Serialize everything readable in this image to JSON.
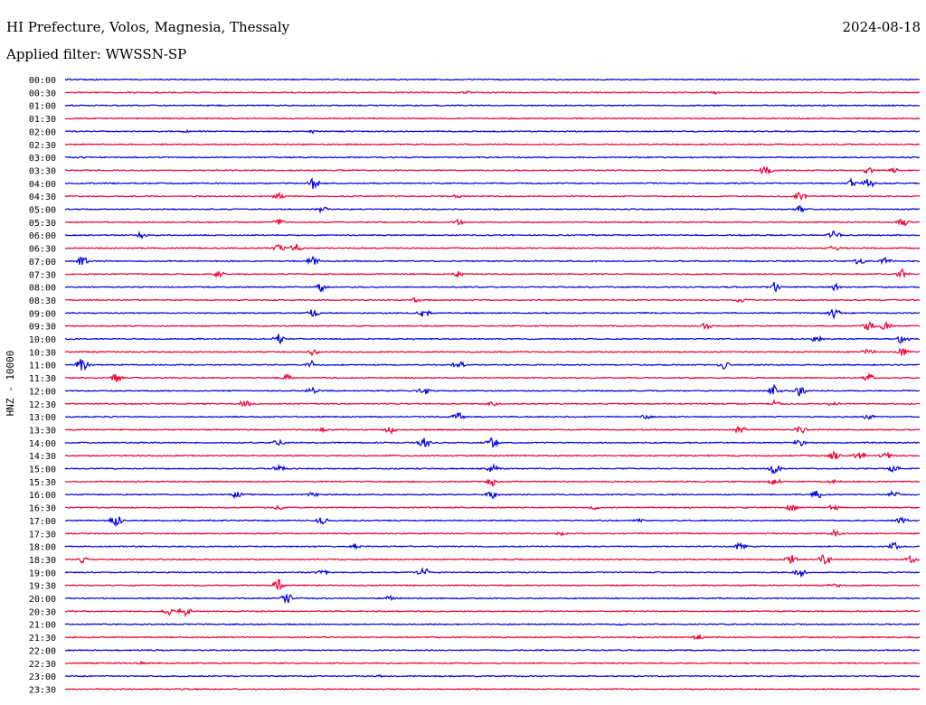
{
  "header": {
    "station": "HI Prefecture, Volos, Magnesia, Thessaly",
    "date": "2024-08-18",
    "filter": "Applied filter: WWSSN-SP"
  },
  "chart_data": {
    "type": "seismogram",
    "title": "HI Prefecture, Volos, Magnesia, Thessaly",
    "ylabel": "HNZ - 10000",
    "colors": {
      "even_trace": "#0000dd",
      "odd_trace": "#ee0033",
      "axis": "#000000"
    },
    "traces": [
      {
        "label": "00:00",
        "events": []
      },
      {
        "label": "00:30",
        "events": [
          {
            "x": 0.47,
            "amp": 2
          },
          {
            "x": 0.76,
            "amp": 2
          }
        ]
      },
      {
        "label": "01:00",
        "events": []
      },
      {
        "label": "01:30",
        "events": []
      },
      {
        "label": "02:00",
        "events": [
          {
            "x": 0.14,
            "amp": 2
          },
          {
            "x": 0.29,
            "amp": 2
          }
        ]
      },
      {
        "label": "02:30",
        "events": []
      },
      {
        "label": "03:00",
        "events": []
      },
      {
        "label": "03:30",
        "events": [
          {
            "x": 0.82,
            "amp": 6
          },
          {
            "x": 0.94,
            "amp": 4
          },
          {
            "x": 0.97,
            "amp": 3
          }
        ]
      },
      {
        "label": "04:00",
        "events": [
          {
            "x": 0.29,
            "amp": 7
          },
          {
            "x": 0.92,
            "amp": 5
          },
          {
            "x": 0.94,
            "amp": 6
          }
        ]
      },
      {
        "label": "04:30",
        "events": [
          {
            "x": 0.25,
            "amp": 4
          },
          {
            "x": 0.46,
            "amp": 3
          },
          {
            "x": 0.86,
            "amp": 5
          }
        ]
      },
      {
        "label": "05:00",
        "events": [
          {
            "x": 0.3,
            "amp": 4
          },
          {
            "x": 0.86,
            "amp": 4
          }
        ]
      },
      {
        "label": "05:30",
        "events": [
          {
            "x": 0.25,
            "amp": 4
          },
          {
            "x": 0.46,
            "amp": 3
          },
          {
            "x": 0.98,
            "amp": 6
          }
        ]
      },
      {
        "label": "06:00",
        "events": [
          {
            "x": 0.09,
            "amp": 4
          },
          {
            "x": 0.9,
            "amp": 5
          }
        ]
      },
      {
        "label": "06:30",
        "events": [
          {
            "x": 0.25,
            "amp": 5
          },
          {
            "x": 0.27,
            "amp": 5
          },
          {
            "x": 0.9,
            "amp": 4
          }
        ]
      },
      {
        "label": "07:00",
        "events": [
          {
            "x": 0.02,
            "amp": 6
          },
          {
            "x": 0.29,
            "amp": 5
          },
          {
            "x": 0.93,
            "amp": 5
          },
          {
            "x": 0.96,
            "amp": 4
          }
        ]
      },
      {
        "label": "07:30",
        "events": [
          {
            "x": 0.18,
            "amp": 4
          },
          {
            "x": 0.46,
            "amp": 4
          },
          {
            "x": 0.98,
            "amp": 6
          }
        ]
      },
      {
        "label": "08:00",
        "events": [
          {
            "x": 0.3,
            "amp": 5
          },
          {
            "x": 0.83,
            "amp": 6
          },
          {
            "x": 0.9,
            "amp": 5
          }
        ]
      },
      {
        "label": "08:30",
        "events": [
          {
            "x": 0.41,
            "amp": 3
          },
          {
            "x": 0.79,
            "amp": 3
          }
        ]
      },
      {
        "label": "09:00",
        "events": [
          {
            "x": 0.29,
            "amp": 5
          },
          {
            "x": 0.42,
            "amp": 6
          },
          {
            "x": 0.9,
            "amp": 6
          }
        ]
      },
      {
        "label": "09:30",
        "events": [
          {
            "x": 0.75,
            "amp": 4
          },
          {
            "x": 0.94,
            "amp": 6
          },
          {
            "x": 0.96,
            "amp": 5
          }
        ]
      },
      {
        "label": "10:00",
        "events": [
          {
            "x": 0.25,
            "amp": 6
          },
          {
            "x": 0.88,
            "amp": 4
          },
          {
            "x": 0.98,
            "amp": 6
          }
        ]
      },
      {
        "label": "10:30",
        "events": [
          {
            "x": 0.29,
            "amp": 4
          },
          {
            "x": 0.94,
            "amp": 5
          },
          {
            "x": 0.98,
            "amp": 5
          }
        ]
      },
      {
        "label": "11:00",
        "events": [
          {
            "x": 0.02,
            "amp": 8
          },
          {
            "x": 0.29,
            "amp": 5
          },
          {
            "x": 0.46,
            "amp": 5
          },
          {
            "x": 0.77,
            "amp": 5
          }
        ]
      },
      {
        "label": "11:30",
        "events": [
          {
            "x": 0.06,
            "amp": 5
          },
          {
            "x": 0.26,
            "amp": 4
          },
          {
            "x": 0.94,
            "amp": 5
          }
        ]
      },
      {
        "label": "12:00",
        "events": [
          {
            "x": 0.29,
            "amp": 5
          },
          {
            "x": 0.42,
            "amp": 5
          },
          {
            "x": 0.83,
            "amp": 7
          },
          {
            "x": 0.86,
            "amp": 6
          }
        ]
      },
      {
        "label": "12:30",
        "events": [
          {
            "x": 0.21,
            "amp": 5
          },
          {
            "x": 0.5,
            "amp": 3
          },
          {
            "x": 0.83,
            "amp": 4
          },
          {
            "x": 0.9,
            "amp": 4
          }
        ]
      },
      {
        "label": "13:00",
        "events": [
          {
            "x": 0.46,
            "amp": 6
          },
          {
            "x": 0.68,
            "amp": 3
          },
          {
            "x": 0.94,
            "amp": 3
          }
        ]
      },
      {
        "label": "13:30",
        "events": [
          {
            "x": 0.3,
            "amp": 3
          },
          {
            "x": 0.38,
            "amp": 5
          },
          {
            "x": 0.79,
            "amp": 5
          },
          {
            "x": 0.86,
            "amp": 5
          }
        ]
      },
      {
        "label": "14:00",
        "events": [
          {
            "x": 0.25,
            "amp": 4
          },
          {
            "x": 0.42,
            "amp": 6
          },
          {
            "x": 0.5,
            "amp": 6
          },
          {
            "x": 0.86,
            "amp": 4
          }
        ]
      },
      {
        "label": "14:30",
        "events": [
          {
            "x": 0.9,
            "amp": 5
          },
          {
            "x": 0.93,
            "amp": 6
          },
          {
            "x": 0.96,
            "amp": 5
          }
        ]
      },
      {
        "label": "15:00",
        "events": [
          {
            "x": 0.25,
            "amp": 5
          },
          {
            "x": 0.5,
            "amp": 5
          },
          {
            "x": 0.83,
            "amp": 6
          },
          {
            "x": 0.97,
            "amp": 4
          }
        ]
      },
      {
        "label": "15:30",
        "events": [
          {
            "x": 0.5,
            "amp": 5
          },
          {
            "x": 0.83,
            "amp": 5
          },
          {
            "x": 0.9,
            "amp": 4
          }
        ]
      },
      {
        "label": "16:00",
        "events": [
          {
            "x": 0.2,
            "amp": 4
          },
          {
            "x": 0.29,
            "amp": 3
          },
          {
            "x": 0.5,
            "amp": 5
          },
          {
            "x": 0.88,
            "amp": 5
          },
          {
            "x": 0.97,
            "amp": 5
          }
        ]
      },
      {
        "label": "16:30",
        "events": [
          {
            "x": 0.25,
            "amp": 3
          },
          {
            "x": 0.62,
            "amp": 3
          },
          {
            "x": 0.85,
            "amp": 4
          },
          {
            "x": 0.9,
            "amp": 4
          }
        ]
      },
      {
        "label": "17:00",
        "events": [
          {
            "x": 0.06,
            "amp": 7
          },
          {
            "x": 0.3,
            "amp": 5
          },
          {
            "x": 0.67,
            "amp": 3
          },
          {
            "x": 0.98,
            "amp": 5
          }
        ]
      },
      {
        "label": "17:30",
        "events": [
          {
            "x": 0.58,
            "amp": 3
          },
          {
            "x": 0.9,
            "amp": 5
          }
        ]
      },
      {
        "label": "18:00",
        "events": [
          {
            "x": 0.34,
            "amp": 3
          },
          {
            "x": 0.79,
            "amp": 5
          },
          {
            "x": 0.97,
            "amp": 5
          }
        ]
      },
      {
        "label": "18:30",
        "events": [
          {
            "x": 0.02,
            "amp": 4
          },
          {
            "x": 0.85,
            "amp": 6
          },
          {
            "x": 0.89,
            "amp": 8
          },
          {
            "x": 0.99,
            "amp": 5
          }
        ]
      },
      {
        "label": "19:00",
        "events": [
          {
            "x": 0.3,
            "amp": 4
          },
          {
            "x": 0.42,
            "amp": 6
          },
          {
            "x": 0.86,
            "amp": 6
          }
        ]
      },
      {
        "label": "19:30",
        "events": [
          {
            "x": 0.25,
            "amp": 7
          },
          {
            "x": 0.9,
            "amp": 3
          }
        ]
      },
      {
        "label": "20:00",
        "events": [
          {
            "x": 0.26,
            "amp": 6
          },
          {
            "x": 0.38,
            "amp": 3
          }
        ]
      },
      {
        "label": "20:30",
        "events": [
          {
            "x": 0.12,
            "amp": 5
          },
          {
            "x": 0.14,
            "amp": 6
          }
        ]
      },
      {
        "label": "21:00",
        "events": [
          {
            "x": 0.65,
            "amp": 2
          }
        ]
      },
      {
        "label": "21:30",
        "events": [
          {
            "x": 0.74,
            "amp": 3
          }
        ]
      },
      {
        "label": "22:00",
        "events": []
      },
      {
        "label": "22:30",
        "events": [
          {
            "x": 0.09,
            "amp": 2
          }
        ]
      },
      {
        "label": "23:00",
        "events": [
          {
            "x": 0.37,
            "amp": 2
          }
        ]
      },
      {
        "label": "23:30",
        "events": []
      }
    ]
  }
}
